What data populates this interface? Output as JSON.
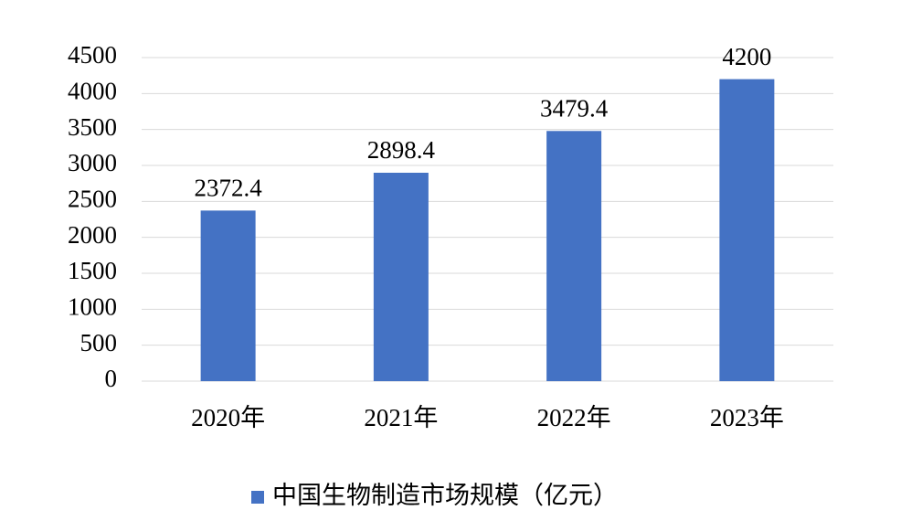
{
  "chart_data": {
    "type": "bar",
    "categories": [
      "2020年",
      "2021年",
      "2022年",
      "2023年"
    ],
    "series": [
      {
        "name": "中国生物制造市场规模（亿元）",
        "color": "#4472c4",
        "values": [
          2372.4,
          2898.4,
          3479.4,
          4200
        ]
      }
    ],
    "ylim": [
      0,
      4500
    ],
    "yticks": [
      0,
      500,
      1000,
      1500,
      2000,
      2500,
      3000,
      3500,
      4000,
      4500
    ],
    "grid": true,
    "legend": "bottom"
  }
}
